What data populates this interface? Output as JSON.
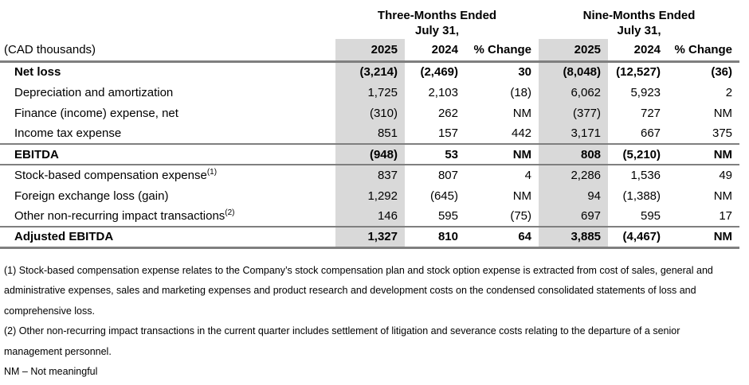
{
  "table": {
    "currency_note": "(CAD thousands)",
    "group_headers": [
      {
        "line1": "Three-Months Ended",
        "line2": "July 31,"
      },
      {
        "line1": "Nine-Months Ended",
        "line2": "July 31,"
      }
    ],
    "column_headers": [
      "2025",
      "2024",
      "% Change",
      "2025",
      "2024",
      "% Change"
    ],
    "rows": [
      {
        "label": "Net loss",
        "sup": "",
        "row_class": "bold",
        "values": [
          "(3,214)",
          "(2,469)",
          "30",
          "(8,048)",
          "(12,527)",
          "(36)"
        ]
      },
      {
        "label": "Depreciation and amortization",
        "sup": "",
        "row_class": "",
        "values": [
          "1,725",
          "2,103",
          "(18)",
          "6,062",
          "5,923",
          "2"
        ]
      },
      {
        "label": "Finance (income) expense, net",
        "sup": "",
        "row_class": "",
        "values": [
          "(310)",
          "262",
          "NM",
          "(377)",
          "727",
          "NM"
        ]
      },
      {
        "label": "Income tax expense",
        "sup": "",
        "row_class": "",
        "values": [
          "851",
          "157",
          "442",
          "3,171",
          "667",
          "375"
        ]
      },
      {
        "label": "EBITDA",
        "sup": "",
        "row_class": "total",
        "values": [
          "(948)",
          "53",
          "NM",
          "808",
          "(5,210)",
          "NM"
        ]
      },
      {
        "label": "Stock-based compensation expense",
        "sup": "(1)",
        "row_class": "",
        "values": [
          "837",
          "807",
          "4",
          "2,286",
          "1,536",
          "49"
        ]
      },
      {
        "label": "Foreign exchange loss (gain)",
        "sup": "",
        "row_class": "",
        "values": [
          "1,292",
          "(645)",
          "NM",
          "94",
          "(1,388)",
          "NM"
        ]
      },
      {
        "label": "Other non-recurring impact transactions",
        "sup": "(2)",
        "row_class": "",
        "values": [
          "146",
          "595",
          "(75)",
          "697",
          "595",
          "17"
        ]
      },
      {
        "label": "Adjusted EBITDA",
        "sup": "",
        "row_class": "grand-total",
        "values": [
          "1,327",
          "810",
          "64",
          "3,885",
          "(4,467)",
          "NM"
        ]
      }
    ],
    "shaded_color": "#d9d9d9",
    "rule_color": "#7f7f7f"
  },
  "footnotes": {
    "lines": [
      "(1) Stock-based compensation expense relates to the Company’s stock compensation plan and stock option expense is extracted from cost of sales, general and",
      "administrative expenses, sales and marketing expenses and product research and development costs on the condensed consolidated statements of loss and",
      "comprehensive loss.",
      "(2) Other non-recurring impact transactions in the current quarter includes settlement of litigation and severance costs relating to the departure of a senior",
      "management personnel.",
      "NM – Not meaningful"
    ]
  }
}
